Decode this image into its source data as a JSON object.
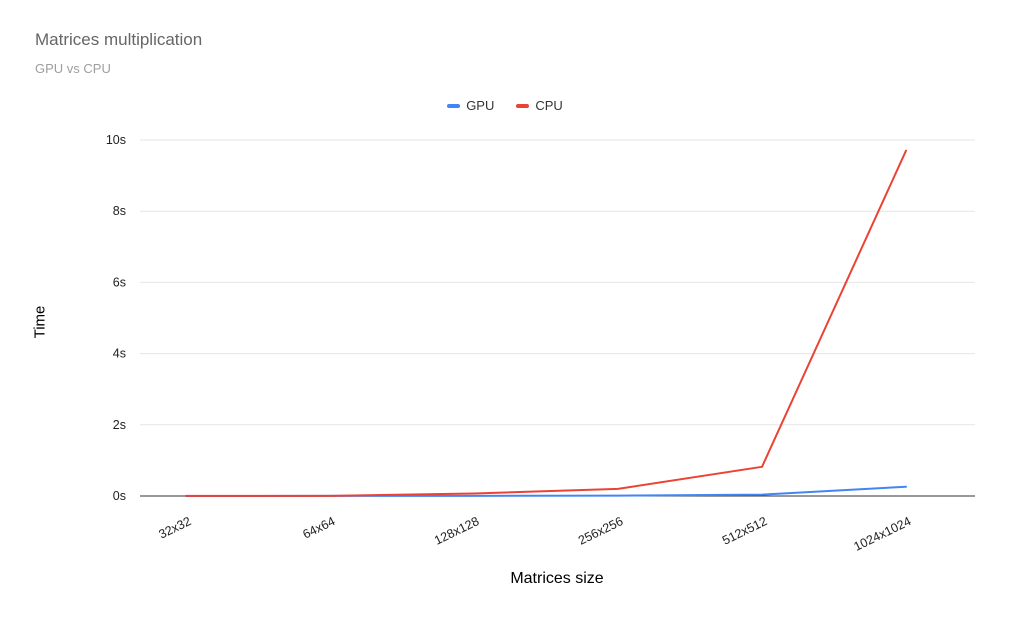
{
  "header": {
    "title": "Matrices multiplication",
    "subtitle": "GPU vs CPU"
  },
  "chart_data": {
    "type": "line",
    "title": "Matrices multiplication",
    "subtitle": "GPU vs CPU",
    "xlabel": "Matrices size",
    "ylabel": "Time",
    "categories": [
      "32x32",
      "64x64",
      "128x128",
      "256x256",
      "512x512",
      "1024x1024"
    ],
    "series": [
      {
        "name": "GPU",
        "color": "#4285f4",
        "values": [
          0.001,
          0.002,
          0.005,
          0.01,
          0.04,
          0.26
        ]
      },
      {
        "name": "CPU",
        "color": "#ea4335",
        "values": [
          0.002,
          0.005,
          0.07,
          0.2,
          0.82,
          9.7
        ]
      }
    ],
    "ylim": [
      0,
      10
    ],
    "y_ticks": [
      {
        "value": 0,
        "label": "0s"
      },
      {
        "value": 2,
        "label": "2s"
      },
      {
        "value": 4,
        "label": "4s"
      },
      {
        "value": 6,
        "label": "6s"
      },
      {
        "value": 8,
        "label": "8s"
      },
      {
        "value": 10,
        "label": "10s"
      }
    ],
    "grid": true,
    "legend_position": "top"
  }
}
